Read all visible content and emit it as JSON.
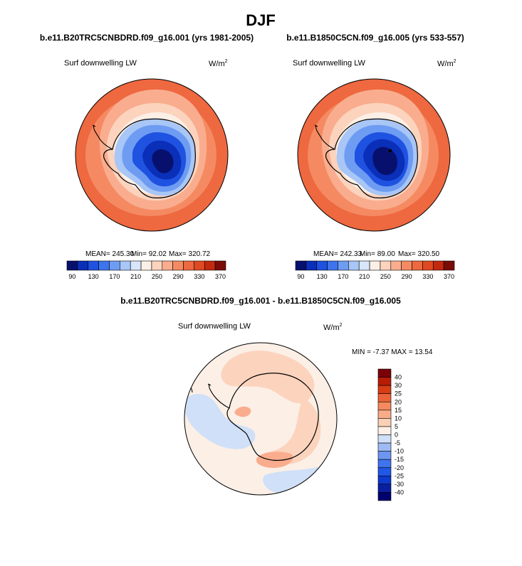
{
  "title": "DJF",
  "colors": {
    "full_field": [
      "#08106e",
      "#0a2fb8",
      "#1f52e0",
      "#3d74ee",
      "#6e9cf2",
      "#a8c6f6",
      "#d7e6fa",
      "#fbefe6",
      "#fcd3bd",
      "#f9ad8e",
      "#f58a62",
      "#ee6840",
      "#e04a22",
      "#c2290e",
      "#7a0c08"
    ],
    "diff_field": [
      "#00006e",
      "#0a1fa0",
      "#0e39cc",
      "#1f57e6",
      "#3f74ee",
      "#6c96f0",
      "#9fbaf4",
      "#cfe0f8",
      "#fbefe6",
      "#fbd0b6",
      "#f8ac88",
      "#f48a5e",
      "#ec6337",
      "#d83d14",
      "#b81c06",
      "#7a0008"
    ],
    "land_outline": "#000000"
  },
  "chart_data": [
    {
      "type": "polar-contour-map",
      "title": "b.e11.B20TRC5CNBDRD.f09_g16.001 (yrs 1981-2005)",
      "variable": "Surf downwelling LW",
      "units": "W/m",
      "units_exp": "2",
      "stats": {
        "mean": "245.30",
        "min": "92.02",
        "max": "320.72"
      },
      "stats_text": {
        "mean": "MEAN= 245.30",
        "min": "Min=  92.02",
        "max": "Max= 320.72"
      },
      "colorbar_levels": [
        90,
        110,
        130,
        150,
        170,
        190,
        210,
        230,
        250,
        270,
        290,
        310,
        330,
        350,
        370
      ],
      "colorbar_labels": [
        "90",
        "130",
        "170",
        "210",
        "250",
        "290",
        "330",
        "370"
      ],
      "field_by_latitude": [
        {
          "lat_south": 90,
          "value": 92
        },
        {
          "lat_south": 80,
          "value": 135
        },
        {
          "lat_south": 70,
          "value": 215
        },
        {
          "lat_south": 60,
          "value": 275
        },
        {
          "lat_south": 50,
          "value": 305
        },
        {
          "lat_south": 40,
          "value": 320
        }
      ]
    },
    {
      "type": "polar-contour-map",
      "title": "b.e11.B1850C5CN.f09_g16.005 (yrs 533-557)",
      "variable": "Surf downwelling LW",
      "units": "W/m",
      "units_exp": "2",
      "stats": {
        "mean": "242.33",
        "min": "89.00",
        "max": "320.50"
      },
      "stats_text": {
        "mean": "MEAN= 242.33",
        "min": "Min=  89.00",
        "max": "Max= 320.50"
      },
      "colorbar_levels": [
        90,
        110,
        130,
        150,
        170,
        190,
        210,
        230,
        250,
        270,
        290,
        310,
        330,
        350,
        370
      ],
      "colorbar_labels": [
        "90",
        "130",
        "170",
        "210",
        "250",
        "290",
        "330",
        "370"
      ],
      "field_by_latitude": [
        {
          "lat_south": 90,
          "value": 89
        },
        {
          "lat_south": 80,
          "value": 132
        },
        {
          "lat_south": 70,
          "value": 212
        },
        {
          "lat_south": 60,
          "value": 272
        },
        {
          "lat_south": 50,
          "value": 303
        },
        {
          "lat_south": 40,
          "value": 320
        }
      ]
    },
    {
      "type": "polar-contour-map-difference",
      "title": "b.e11.B20TRC5CNBDRD.f09_g16.001 - b.e11.B1850C5CN.f09_g16.005",
      "variable": "Surf downwelling LW",
      "units": "W/m",
      "units_exp": "2",
      "stats": {
        "min": "-7.37",
        "max": "13.54"
      },
      "stats_text": "MIN =  -7.37 MAX =  13.54",
      "colorbar_levels": [
        -40,
        -35,
        -30,
        -25,
        -20,
        -15,
        -10,
        -5,
        0,
        5,
        10,
        15,
        20,
        25,
        30,
        40
      ],
      "colorbar_labels": [
        "40",
        "30",
        "25",
        "20",
        "15",
        "10",
        "5",
        "0",
        "-5",
        "-10",
        "-15",
        "-20",
        "-25",
        "-30",
        "-40"
      ],
      "dominant_value_range": [
        -5,
        10
      ]
    }
  ]
}
